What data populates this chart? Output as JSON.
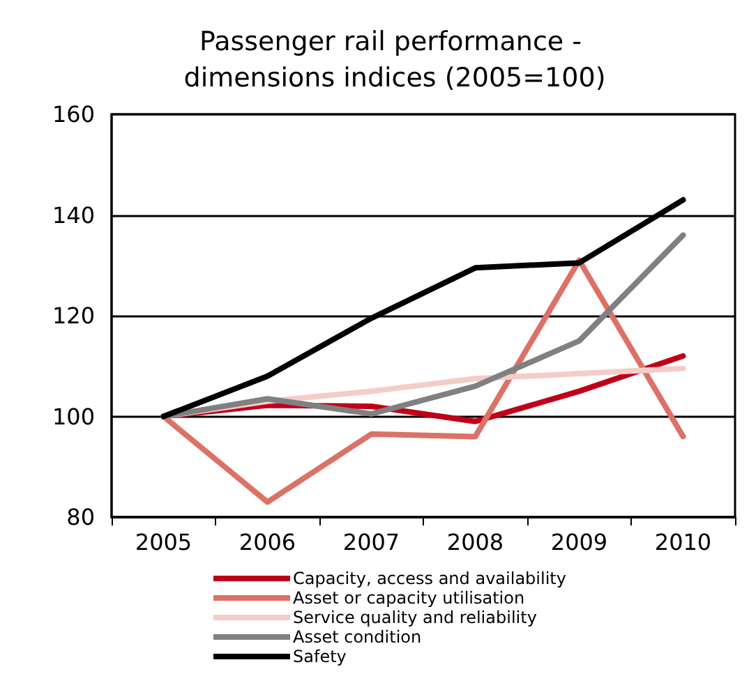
{
  "chart_data": {
    "type": "line",
    "title": "Passenger rail performance - dimensions indices (2005=100)",
    "categories": [
      "2005",
      "2006",
      "2007",
      "2008",
      "2009",
      "2010"
    ],
    "series": [
      {
        "name": "Capacity, access and availability",
        "color": "#c00018",
        "values": [
          100,
          102.2,
          102,
          99,
          105,
          112
        ]
      },
      {
        "name": "Asset or capacity utilisation",
        "color": "#dc7166",
        "values": [
          100,
          83,
          96.5,
          96,
          131,
          96
        ]
      },
      {
        "name": "Service quality and reliability",
        "color": "#f3cdca",
        "values": [
          100,
          103,
          105,
          107.5,
          108.5,
          109.5
        ]
      },
      {
        "name": "Asset condition",
        "color": "#808080",
        "values": [
          100,
          103.5,
          100.5,
          106,
          115,
          136
        ]
      },
      {
        "name": "Safety",
        "color": "#000000",
        "values": [
          100,
          108,
          119.5,
          129.5,
          130.5,
          143
        ]
      }
    ],
    "ylim": [
      80,
      160
    ],
    "yticks": [
      80,
      100,
      120,
      140,
      160
    ],
    "grid": "y",
    "legend": "bottom",
    "marker": "none",
    "line_style": "solid"
  }
}
